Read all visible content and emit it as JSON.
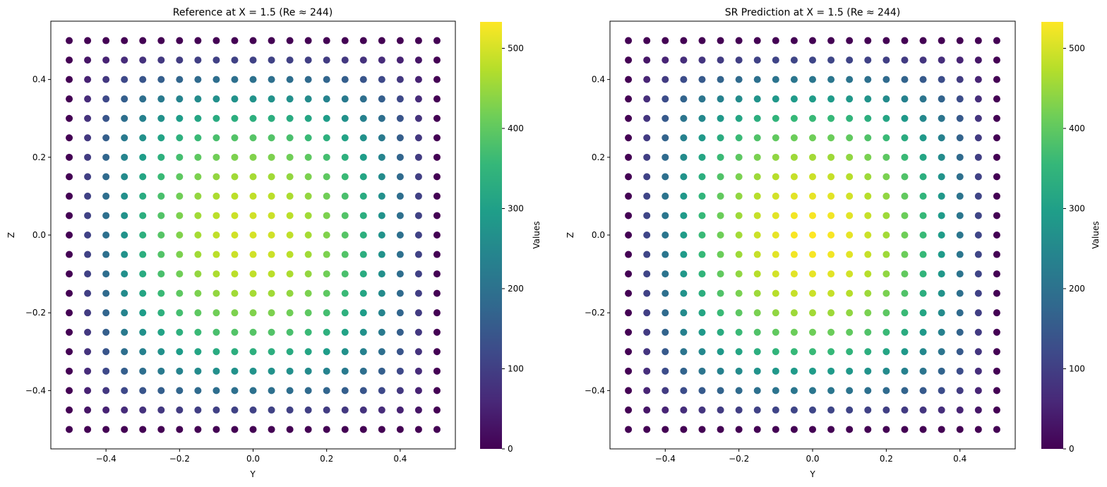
{
  "colormap": [
    "#440154",
    "#482878",
    "#3e4989",
    "#31688e",
    "#26828e",
    "#1f9e89",
    "#35b779",
    "#6ece58",
    "#b5de2b",
    "#fde725"
  ],
  "chart_data": [
    {
      "type": "scatter",
      "title": "Reference at X = 1.5 (Re ≈ 244)",
      "xlabel": "Y",
      "ylabel": "Z",
      "xlim": [
        -0.55,
        0.55
      ],
      "ylim": [
        -0.55,
        0.55
      ],
      "xticks": [
        -0.4,
        -0.2,
        0.0,
        0.2,
        0.4
      ],
      "yticks": [
        -0.4,
        -0.2,
        0.0,
        0.2,
        0.4
      ],
      "grid": false,
      "grid_y": [
        -0.5,
        -0.45,
        -0.4,
        -0.35,
        -0.3,
        -0.25,
        -0.2,
        -0.15,
        -0.1,
        -0.05,
        0.0,
        0.05,
        0.1,
        0.15,
        0.2,
        0.25,
        0.3,
        0.35,
        0.4,
        0.45,
        0.5
      ],
      "grid_z": [
        -0.5,
        -0.45,
        -0.4,
        -0.35,
        -0.3,
        -0.25,
        -0.2,
        -0.15,
        -0.1,
        -0.05,
        0.0,
        0.05,
        0.1,
        0.15,
        0.2,
        0.25,
        0.3,
        0.35,
        0.4,
        0.45,
        0.5
      ],
      "peak_value": 500,
      "colorbar": {
        "label": "Values",
        "range": [
          0,
          533
        ],
        "ticks": [
          0,
          100,
          200,
          300,
          400,
          500
        ]
      }
    },
    {
      "type": "scatter",
      "title": "SR Prediction at X = 1.5 (Re ≈ 244)",
      "xlabel": "Y",
      "ylabel": "Z",
      "xlim": [
        -0.55,
        0.55
      ],
      "ylim": [
        -0.55,
        0.55
      ],
      "xticks": [
        -0.4,
        -0.2,
        0.0,
        0.2,
        0.4
      ],
      "yticks": [
        -0.4,
        -0.2,
        0.0,
        0.2,
        0.4
      ],
      "grid": false,
      "grid_y": [
        -0.5,
        -0.45,
        -0.4,
        -0.35,
        -0.3,
        -0.25,
        -0.2,
        -0.15,
        -0.1,
        -0.05,
        0.0,
        0.05,
        0.1,
        0.15,
        0.2,
        0.25,
        0.3,
        0.35,
        0.4,
        0.45,
        0.5
      ],
      "grid_z": [
        -0.5,
        -0.45,
        -0.4,
        -0.35,
        -0.3,
        -0.25,
        -0.2,
        -0.15,
        -0.1,
        -0.05,
        0.0,
        0.05,
        0.1,
        0.15,
        0.2,
        0.25,
        0.3,
        0.35,
        0.4,
        0.45,
        0.5
      ],
      "peak_value": 533,
      "colorbar": {
        "label": "Values",
        "range": [
          0,
          533
        ],
        "ticks": [
          0,
          100,
          200,
          300,
          400,
          500
        ]
      }
    }
  ]
}
